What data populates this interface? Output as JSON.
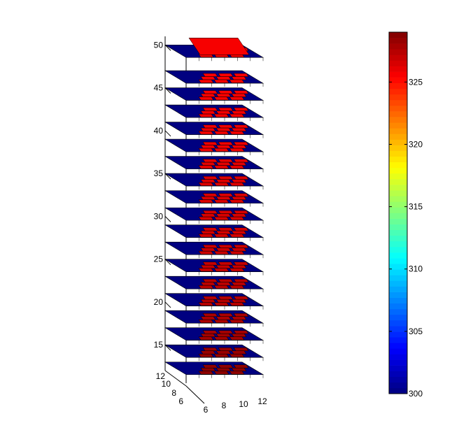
{
  "chart_data": {
    "type": "heatmap",
    "title": "",
    "description_free": true,
    "z_axis": {
      "label": "",
      "range": [
        12,
        51
      ],
      "ticks": [
        "15",
        "20",
        "25",
        "30",
        "35",
        "40",
        "45",
        "50"
      ]
    },
    "x_axis": {
      "label": "",
      "range": [
        5,
        12
      ],
      "ticks": [
        "6",
        "8",
        "10",
        "12"
      ]
    },
    "y_axis": {
      "label": "",
      "range": [
        5,
        12
      ],
      "ticks": [
        "6",
        "8",
        "10",
        "12"
      ]
    },
    "slices": [
      {
        "z": 13,
        "value": 328.6
      },
      {
        "z": 15,
        "value": 328.3
      },
      {
        "z": 17,
        "value": 328.0
      },
      {
        "z": 19,
        "value": 327.7
      },
      {
        "z": 21,
        "value": 327.5
      },
      {
        "z": 23,
        "value": 327.3
      },
      {
        "z": 25,
        "value": 327.0
      },
      {
        "z": 27,
        "value": 326.8
      },
      {
        "z": 29,
        "value": 326.6
      },
      {
        "z": 31,
        "value": 326.5
      },
      {
        "z": 33,
        "value": 326.4
      },
      {
        "z": 35,
        "value": 326.3
      },
      {
        "z": 37,
        "value": 326.1
      },
      {
        "z": 39,
        "value": 325.8
      },
      {
        "z": 41,
        "value": 325.8
      },
      {
        "z": 43,
        "value": 325.7
      },
      {
        "z": 45,
        "value": 325.5
      },
      {
        "z": 47,
        "value": 325.4
      },
      {
        "z": 50,
        "value": 325.6
      }
    ],
    "background_value": 300,
    "colorbar": {
      "min": 300,
      "max": 329,
      "ticks": [
        "300",
        "305",
        "310",
        "315",
        "320",
        "325"
      ],
      "colormap": "jet"
    },
    "grid": false
  }
}
